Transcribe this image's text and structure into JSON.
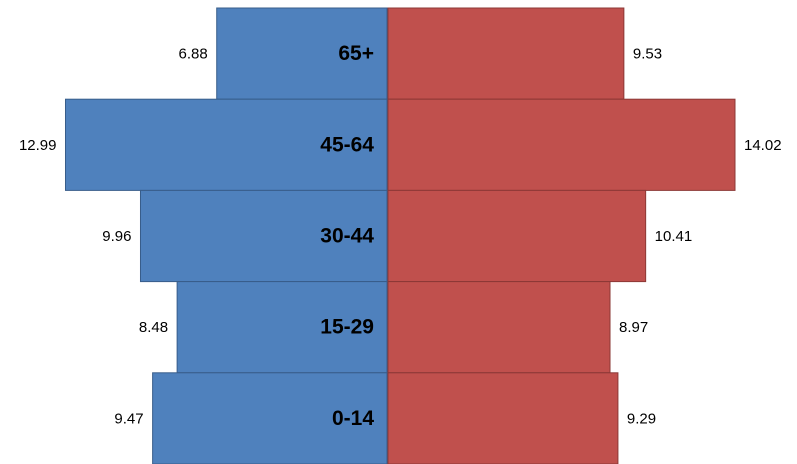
{
  "chart_data": {
    "type": "bar",
    "orientation": "horizontal",
    "categories": [
      "65+",
      "45-64",
      "30-44",
      "15-29",
      "0-14"
    ],
    "series": [
      {
        "color": "#4f81bd",
        "values": [
          6.88,
          12.99,
          9.96,
          8.48,
          9.47
        ]
      },
      {
        "color": "#c0504d",
        "values": [
          9.53,
          14.02,
          10.41,
          8.97,
          9.29
        ]
      }
    ]
  }
}
